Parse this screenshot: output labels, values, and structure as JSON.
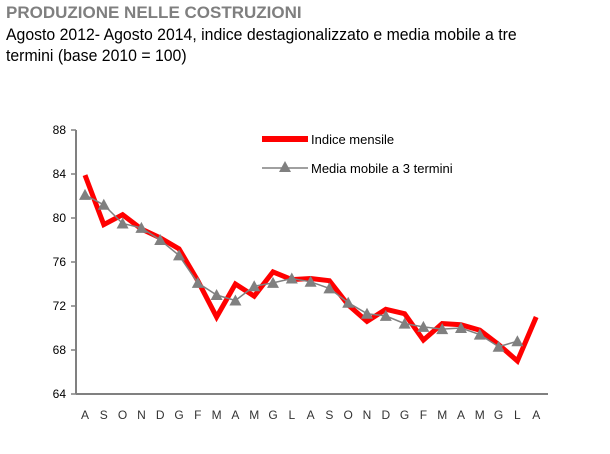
{
  "chart_data": {
    "type": "line",
    "title": "PRODUZIONE NELLE COSTRUZIONI",
    "subtitle": "Agosto 2012- Agosto 2014, indice destagionalizzato e media mobile a tre termini (base 2010 = 100)",
    "categories": [
      "A",
      "S",
      "O",
      "N",
      "D",
      "G",
      "F",
      "M",
      "A",
      "M",
      "G",
      "L",
      "A",
      "S",
      "O",
      "N",
      "D",
      "G",
      "F",
      "M",
      "A",
      "M",
      "G",
      "L",
      "A"
    ],
    "ylim": [
      64,
      88
    ],
    "yticks": [
      64,
      68,
      72,
      76,
      80,
      84,
      88
    ],
    "grid": false,
    "legend": "top-right",
    "series": [
      {
        "name": "Indice mensile",
        "color": "#ff0000",
        "values": [
          83.9,
          79.4,
          80.3,
          79.0,
          78.2,
          77.2,
          74.3,
          71.0,
          74.0,
          72.9,
          75.1,
          74.4,
          74.5,
          74.3,
          72.1,
          70.6,
          71.7,
          71.3,
          68.9,
          70.4,
          70.3,
          69.8,
          68.5,
          67.0,
          71.0
        ]
      },
      {
        "name": "Media mobile a 3 termini",
        "color": "#808080",
        "values": [
          82.1,
          81.2,
          79.5,
          79.1,
          78.0,
          76.6,
          74.1,
          73.0,
          72.5,
          73.8,
          74.1,
          74.5,
          74.2,
          73.6,
          72.3,
          71.3,
          71.1,
          70.4,
          70.1,
          69.9,
          70.0,
          69.4,
          68.3,
          68.8,
          null
        ]
      }
    ]
  }
}
